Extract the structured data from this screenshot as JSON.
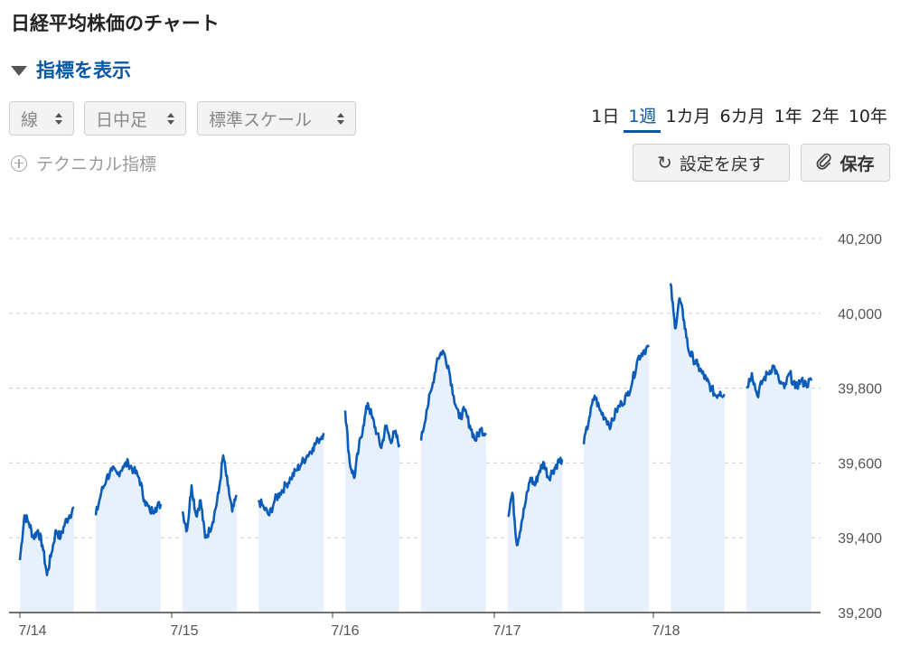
{
  "header": {
    "title": "日経平均株価のチャート"
  },
  "indicator_toggle": {
    "label": "指標を表示"
  },
  "selects": {
    "type": "線",
    "interval": "日中足",
    "scale": "標準スケール"
  },
  "technical": {
    "label": "テクニカル指標"
  },
  "periods": [
    "1日",
    "1週",
    "1カ月",
    "6カ月",
    "1年",
    "2年",
    "10年"
  ],
  "active_period": "1週",
  "buttons": {
    "reset": "設定を戻す",
    "save": "保存"
  },
  "icons": {
    "reset": "refresh-icon",
    "save": "paperclip-icon",
    "toggle": "triangle-down-icon",
    "add": "plus-circle-icon"
  },
  "colors": {
    "accent": "#0a57a5",
    "line": "#0a5cb8",
    "area": "#e8f0fc",
    "grid": "#cccccc"
  },
  "chart_data": {
    "type": "area",
    "ylim": [
      39200,
      40200
    ],
    "yticks": [
      "40,200",
      "40,000",
      "39,800",
      "39,600",
      "39,400",
      "39,200"
    ],
    "yvals": [
      40200,
      40000,
      39800,
      39600,
      39400,
      39200
    ],
    "xticks": [
      "7/14",
      "7/15",
      "7/16",
      "7/17",
      "7/18"
    ],
    "grid": true,
    "sessions": [
      {
        "day": "7/14",
        "part": "AM",
        "values": [
          39340,
          39460,
          39440,
          39400,
          39420,
          39380,
          39300,
          39360,
          39420,
          39400,
          39440,
          39460,
          39480
        ]
      },
      {
        "day": "7/14",
        "part": "PM",
        "values": [
          39460,
          39520,
          39560,
          39580,
          39570,
          39590,
          39600,
          39580,
          39560,
          39500,
          39470,
          39480,
          39490
        ]
      },
      {
        "day": "7/15",
        "part": "AM",
        "values": [
          39470,
          39420,
          39540,
          39460,
          39500,
          39400,
          39420,
          39460,
          39520,
          39620,
          39540,
          39470,
          39510
        ]
      },
      {
        "day": "7/15",
        "part": "PM",
        "values": [
          39500,
          39480,
          39460,
          39500,
          39520,
          39540,
          39560,
          39580,
          39600,
          39620,
          39640,
          39660,
          39680
        ]
      },
      {
        "day": "7/16",
        "part": "AM",
        "values": [
          39740,
          39600,
          39560,
          39640,
          39700,
          39760,
          39720,
          39680,
          39640,
          39700,
          39660,
          39680,
          39650
        ]
      },
      {
        "day": "7/16",
        "part": "PM",
        "values": [
          39660,
          39740,
          39800,
          39880,
          39900,
          39860,
          39780,
          39720,
          39740,
          39700,
          39660,
          39690,
          39680
        ]
      },
      {
        "day": "7/17",
        "part": "AM",
        "values": [
          39460,
          39520,
          39380,
          39440,
          39500,
          39560,
          39540,
          39580,
          39600,
          39560,
          39580,
          39600,
          39610
        ]
      },
      {
        "day": "7/17",
        "part": "PM",
        "values": [
          39650,
          39720,
          39780,
          39740,
          39720,
          39700,
          39740,
          39760,
          39780,
          39820,
          39880,
          39900,
          39910
        ]
      },
      {
        "day": "7/18",
        "part": "AM",
        "values": [
          40080,
          39960,
          40040,
          39980,
          39900,
          39880,
          39860,
          39840,
          39820,
          39800,
          39780,
          39790,
          39780
        ]
      },
      {
        "day": "7/18",
        "part": "PM",
        "values": [
          39800,
          39840,
          39780,
          39820,
          39840,
          39860,
          39820,
          39800,
          39840,
          39800,
          39820,
          39810,
          39820
        ]
      }
    ]
  }
}
